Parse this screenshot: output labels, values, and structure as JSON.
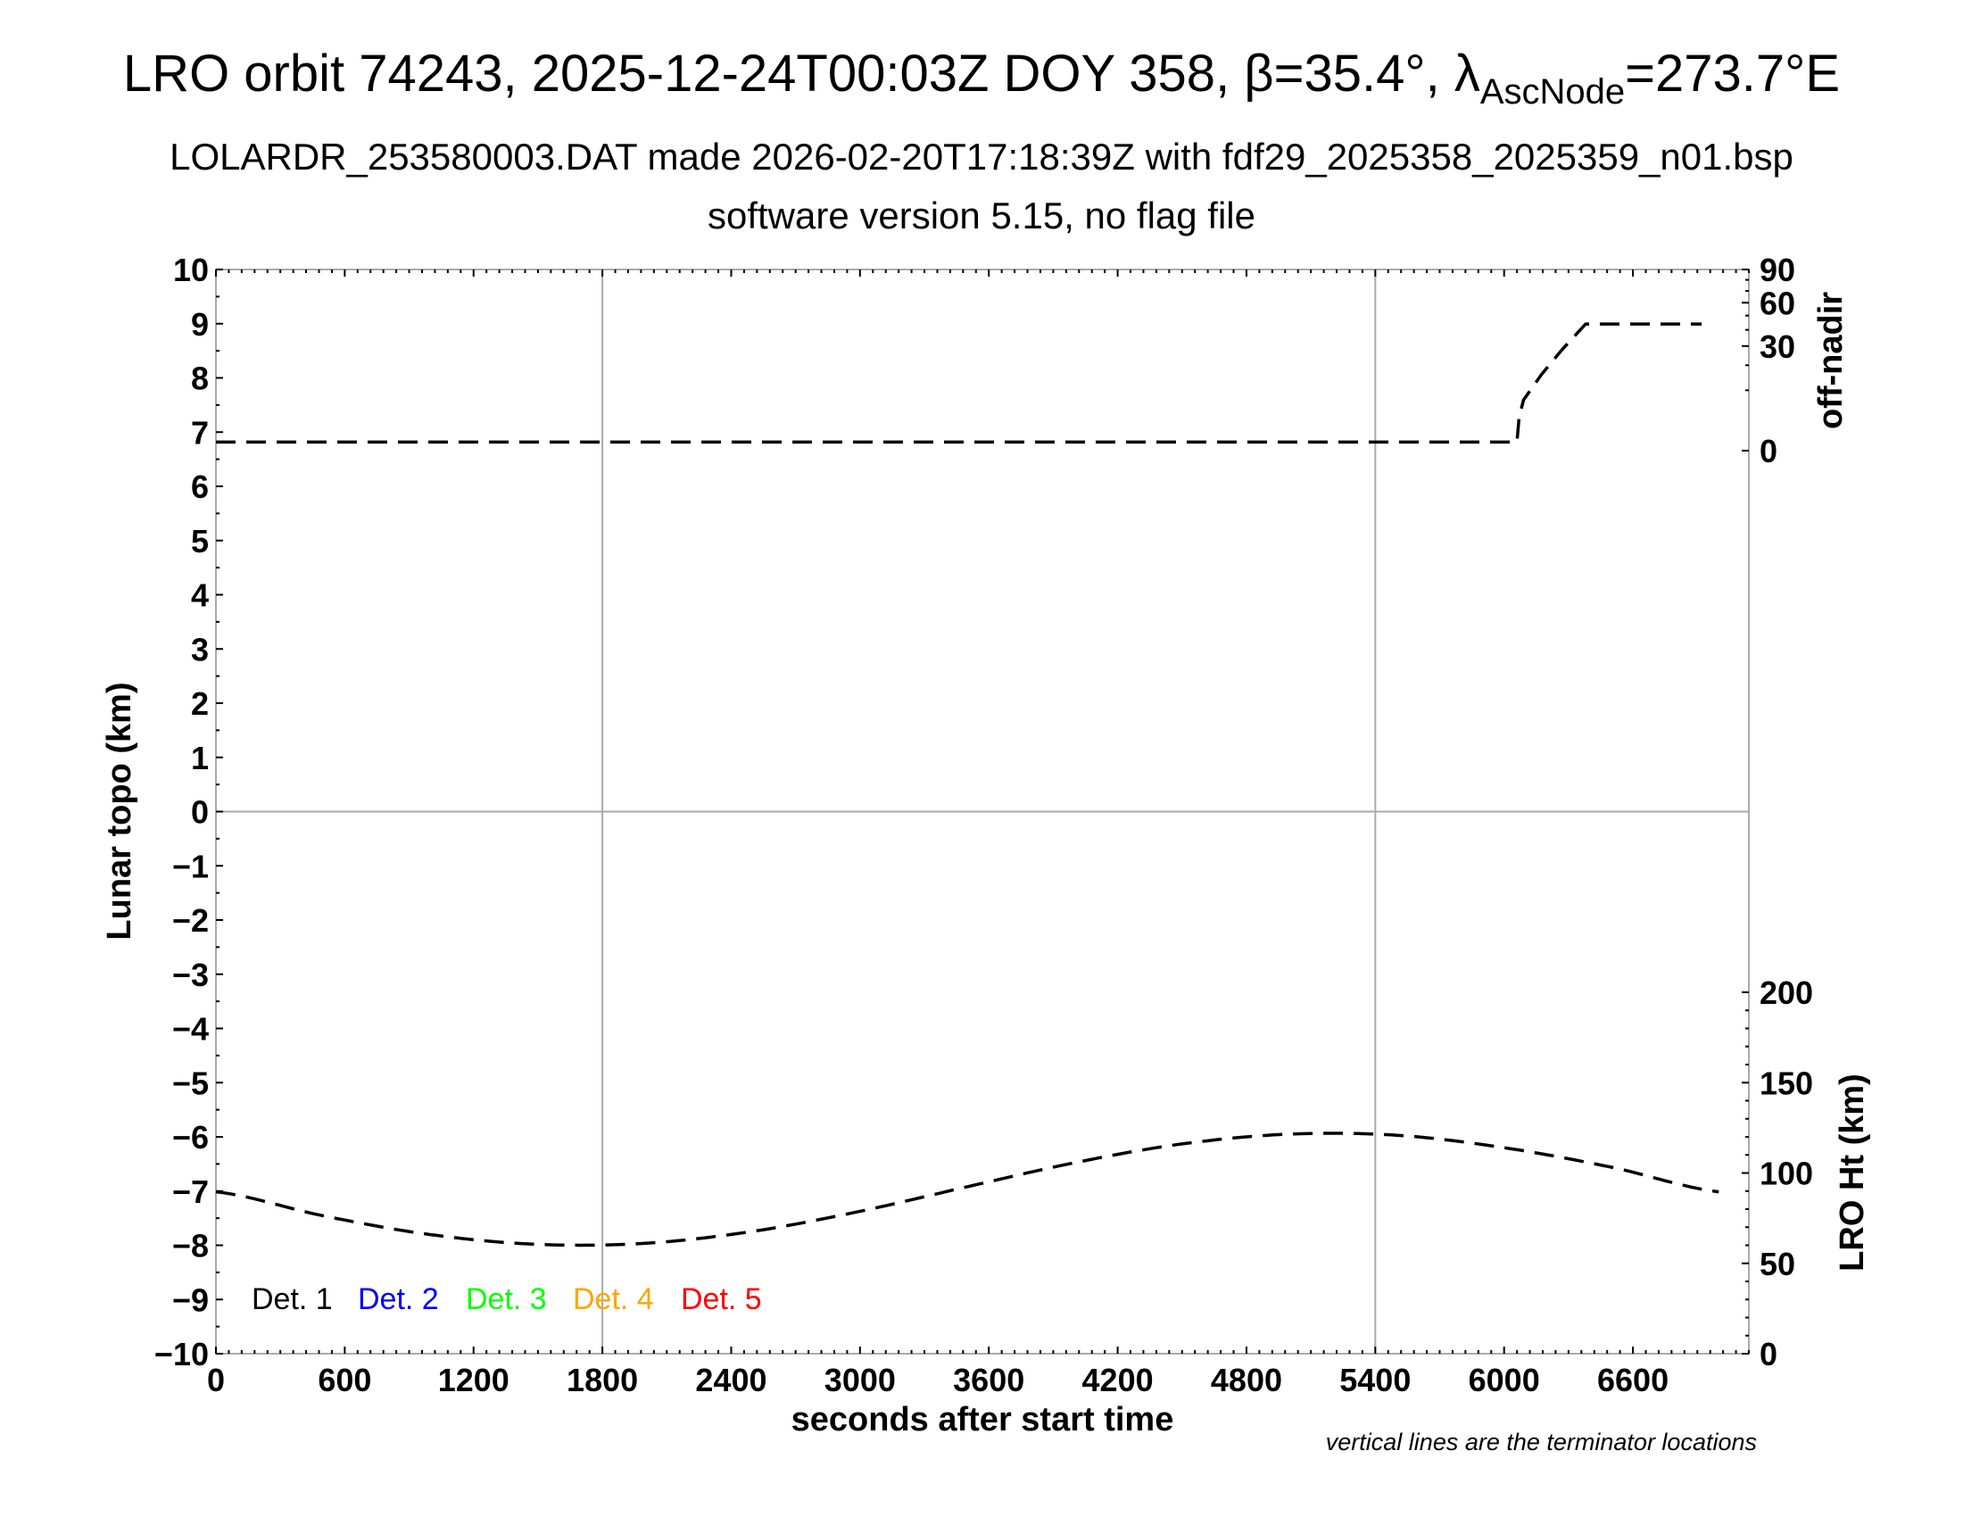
{
  "title": {
    "main": "LRO orbit 74243, 2025-12-24T00:03Z DOY 358, β=35.4°, λ",
    "main_sub": "AscNode",
    "main_end": "=273.7°E",
    "line2": "LOLARDR_253580003.DAT made 2026-02-20T17:18:39Z with fdf29_2025358_2025359_n01.bsp",
    "line3": "software version 5.15, no flag file"
  },
  "chart_data": {
    "type": "line",
    "xlabel": "seconds after start time",
    "ylabel_left": "Lunar topo (km)",
    "ylabel_right_top": "off-nadir",
    "ylabel_right_bottom": "LRO Ht (km)",
    "note": "vertical lines are the terminator locations",
    "xlim": [
      0,
      7140
    ],
    "x_ticks": [
      0,
      600,
      1200,
      1800,
      2400,
      3000,
      3600,
      4200,
      4800,
      5400,
      6000,
      6600
    ],
    "ylim_left": [
      -10,
      10
    ],
    "y_ticks_left": [
      10,
      9,
      8,
      7,
      6,
      5,
      4,
      3,
      2,
      1,
      0,
      -1,
      -2,
      -3,
      -4,
      -5,
      -6,
      -7,
      -8,
      -9,
      -10
    ],
    "offnadir_scale": "sqrt",
    "offnadir_lim": [
      0,
      90
    ],
    "offnadir_ticks": [
      90,
      60,
      30,
      0
    ],
    "ht_lim": [
      0,
      200
    ],
    "ht_ticks": [
      200,
      150,
      100,
      50,
      0
    ],
    "terminator_lines_x": [
      1800,
      5400
    ],
    "zero_line_y": 0,
    "legend": [
      {
        "label": "Det. 1",
        "color": "#000000"
      },
      {
        "label": "Det. 2",
        "color": "#0000ff"
      },
      {
        "label": "Det. 3",
        "color": "#00ff00"
      },
      {
        "label": "Det. 4",
        "color": "#ffa500"
      },
      {
        "label": "Det. 5",
        "color": "#ff0000"
      }
    ],
    "legend_placement": "bottom-left",
    "series": [
      {
        "axis": "off-nadir",
        "style": "dashed",
        "color": "#000000",
        "x": [
          0,
          6060,
          6070,
          6090,
          6175,
          6270,
          6380,
          6920
        ],
        "y": [
          0.2,
          0.2,
          3,
          7,
          16,
          28,
          44,
          44
        ]
      },
      {
        "axis": "LRO Ht (km)",
        "style": "dashed",
        "color": "#000000",
        "x": [
          0,
          500,
          1000,
          1500,
          2000,
          2500,
          3000,
          3500,
          4000,
          4500,
          5000,
          5500,
          6000,
          6500,
          7000
        ],
        "y": [
          89.6,
          76.3,
          65.9,
          60.5,
          61.1,
          67.7,
          78.8,
          92.4,
          105.7,
          116.1,
          121.5,
          120.9,
          114.0,
          103.2,
          89.6
        ]
      }
    ]
  }
}
